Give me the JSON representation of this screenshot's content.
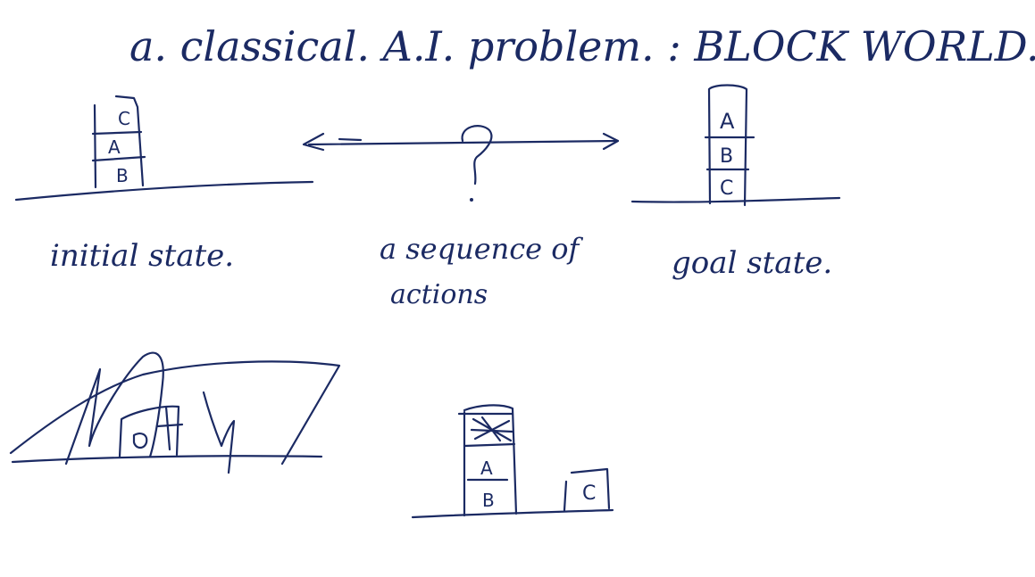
{
  "title": "a. classical. A.I. problem. : BLOCK WORLD.",
  "initial_state": {
    "label": "initial state.",
    "stack": [
      "C",
      "A",
      "B"
    ]
  },
  "middle": {
    "question": "?",
    "label_line1": "a sequence of",
    "label_line2": "actions"
  },
  "goal_state": {
    "label": "goal state.",
    "stack": [
      "A",
      "B",
      "C"
    ]
  },
  "bottom_sketch": {
    "stack": [
      "A",
      "B"
    ],
    "loose_block": "C"
  },
  "ink_color": "#1b2a63"
}
